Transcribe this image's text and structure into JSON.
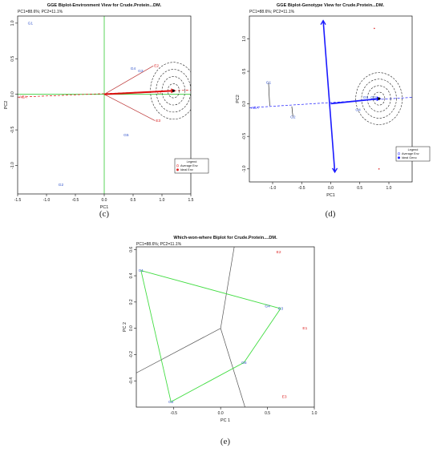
{
  "chart_data": [
    {
      "id": "c",
      "type": "scatter",
      "caption": "(c)",
      "title": "GGE Biplot-Environment View for Crude.Protein...DM.",
      "subtitle": "PC1=88.6%; PC2=11.1%",
      "xlabel": "PC1",
      "ylabel": "PC2",
      "xlim": [
        -1.5,
        1.5
      ],
      "ylim": [
        -1.4,
        1.1
      ],
      "xticks": [
        "-1.5",
        "-1.0",
        "-0.5",
        "0.0",
        "0.5",
        "1.0",
        "1.5"
      ],
      "xtick_values": [
        -1.5,
        -1.0,
        -0.5,
        0.0,
        0.5,
        1.0,
        1.5
      ],
      "yticks": [
        "1.0",
        "0.5",
        "0.0",
        "-0.5",
        "-1.0"
      ],
      "ytick_values": [
        1.0,
        0.5,
        0.0,
        -0.5,
        -1.0
      ],
      "genotypes": [
        {
          "label": "G1",
          "x": -1.28,
          "y": 1.0
        },
        {
          "label": "G2",
          "x": -0.75,
          "y": -1.27
        },
        {
          "label": "G3",
          "x": 0.63,
          "y": 0.33
        },
        {
          "label": "G4",
          "x": 0.5,
          "y": 0.36
        },
        {
          "label": "G5",
          "x": 0.38,
          "y": -0.57
        }
      ],
      "environments": [
        {
          "label": "E1",
          "x": 0.9,
          "y": 0.03
        },
        {
          "label": "E2",
          "x": 0.85,
          "y": 0.4
        },
        {
          "label": "E3",
          "x": 0.88,
          "y": -0.37
        }
      ],
      "ideal_point": {
        "x": 1.2,
        "y": 0.05
      },
      "aea_label": "AEA",
      "legend": {
        "title": "Legend",
        "items": [
          "Average Env",
          "Ideal Env"
        ]
      }
    },
    {
      "id": "d",
      "type": "scatter",
      "caption": "(d)",
      "title": "GGE Biplot-Genotype View for Crude.Protein...DM.",
      "subtitle": "PC1=88.6%; PC2=11.1%",
      "xlabel": "PC1",
      "ylabel": "PC2",
      "xlim": [
        -1.4,
        1.4
      ],
      "ylim": [
        -1.2,
        1.35
      ],
      "xticks": [
        "-1.0",
        "-0.5",
        "0.0",
        "0.5",
        "1.0"
      ],
      "xtick_values": [
        -1.0,
        -0.5,
        0.0,
        0.5,
        1.0
      ],
      "yticks": [
        "1.0",
        "0.5",
        "0.0",
        "-0.5",
        "-1.0"
      ],
      "ytick_values": [
        1.0,
        0.5,
        0.0,
        -0.5,
        -1.0
      ],
      "genotypes": [
        {
          "label": "G1",
          "x": -1.07,
          "y": 0.33
        },
        {
          "label": "G2",
          "x": -0.65,
          "y": -0.2
        },
        {
          "label": "G3",
          "x": 0.73,
          "y": 0.1
        },
        {
          "label": "G4",
          "x": 0.47,
          "y": -0.09
        },
        {
          "label": "G5",
          "x": 0.6,
          "y": 0.1
        }
      ],
      "environments": [
        {
          "label": "",
          "x": 0.75,
          "y": 1.16
        },
        {
          "label": "",
          "x": 0.83,
          "y": -1.0
        }
      ],
      "ideal_point": {
        "x": 0.83,
        "y": 0.08
      },
      "aea_label": "AEA",
      "legend": {
        "title": "Legend",
        "items": [
          "Average Env",
          "Ideal Geno"
        ]
      }
    },
    {
      "id": "e",
      "type": "scatter",
      "caption": "(e)",
      "title": "Which-won-where Biplot for Crude.Protein....DM.",
      "subtitle": "PC1=88.6%; PC2=11.1%",
      "xlabel": "PC 1",
      "ylabel": "PC 2",
      "xlim": [
        -0.9,
        1.0
      ],
      "ylim": [
        -0.6,
        0.62
      ],
      "xticks": [
        "-0.5",
        "0.0",
        "0.5",
        "1.0"
      ],
      "xtick_values": [
        -0.5,
        0.0,
        0.5,
        1.0
      ],
      "yticks": [
        "0.6",
        "0.4",
        "0.2",
        "0.0",
        "-0.2",
        "-0.4"
      ],
      "ytick_values": [
        0.6,
        0.4,
        0.2,
        0.0,
        -0.2,
        -0.4
      ],
      "genotypes": [
        {
          "label": "G1",
          "x": -0.85,
          "y": 0.44
        },
        {
          "label": "G2",
          "x": -0.53,
          "y": -0.56
        },
        {
          "label": "G3",
          "x": 0.64,
          "y": 0.15
        },
        {
          "label": "G4",
          "x": 0.5,
          "y": 0.17
        },
        {
          "label": "G5",
          "x": 0.25,
          "y": -0.26
        }
      ],
      "environments": [
        {
          "label": "E1",
          "x": 0.9,
          "y": 0.0
        },
        {
          "label": "E2",
          "x": 0.62,
          "y": 0.58
        },
        {
          "label": "E3",
          "x": 0.68,
          "y": -0.52
        }
      ],
      "hull": [
        "G1",
        "G3",
        "G5",
        "G2"
      ],
      "sector_origin": {
        "x": 0.0,
        "y": 0.0
      },
      "sector_ends": [
        {
          "x": 0.15,
          "y": 0.64
        },
        {
          "x": 0.26,
          "y": -0.6
        },
        {
          "x": -0.9,
          "y": -0.34
        }
      ]
    }
  ],
  "colors": {
    "genotype": "#3355cc",
    "environment": "#dd2222",
    "axis_line": "#33cc33",
    "blue_vector": "#1a1aff",
    "red_vector": "#dd1111",
    "sector": "#555555",
    "hull": "#44dd44"
  }
}
